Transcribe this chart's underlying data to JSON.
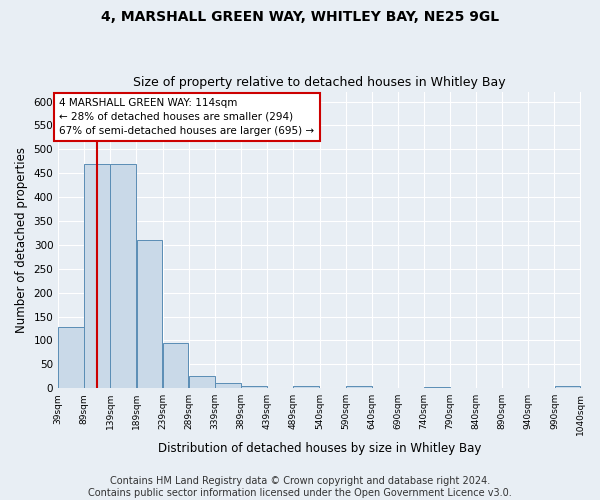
{
  "title1": "4, MARSHALL GREEN WAY, WHITLEY BAY, NE25 9GL",
  "title2": "Size of property relative to detached houses in Whitley Bay",
  "xlabel": "Distribution of detached houses by size in Whitley Bay",
  "ylabel": "Number of detached properties",
  "footnote": "Contains HM Land Registry data © Crown copyright and database right 2024.\nContains public sector information licensed under the Open Government Licence v3.0.",
  "bin_edges": [
    39,
    89,
    139,
    189,
    239,
    289,
    339,
    389,
    439,
    489,
    540,
    590,
    640,
    690,
    740,
    790,
    840,
    890,
    940,
    990,
    1040
  ],
  "bar_heights": [
    128,
    470,
    470,
    311,
    95,
    25,
    10,
    4,
    0,
    5,
    0,
    5,
    0,
    0,
    3,
    0,
    0,
    0,
    0,
    4
  ],
  "bar_color": "#c9d9e8",
  "bar_edge_color": "#5a8db5",
  "property_size": 114,
  "red_line_color": "#cc0000",
  "annotation_text": "4 MARSHALL GREEN WAY: 114sqm\n← 28% of detached houses are smaller (294)\n67% of semi-detached houses are larger (695) →",
  "annotation_box_color": "#ffffff",
  "annotation_box_edge": "#cc0000",
  "ylim": [
    0,
    620
  ],
  "yticks": [
    0,
    50,
    100,
    150,
    200,
    250,
    300,
    350,
    400,
    450,
    500,
    550,
    600
  ],
  "tick_labels": [
    "39sqm",
    "89sqm",
    "139sqm",
    "189sqm",
    "239sqm",
    "289sqm",
    "339sqm",
    "389sqm",
    "439sqm",
    "489sqm",
    "540sqm",
    "590sqm",
    "640sqm",
    "690sqm",
    "740sqm",
    "790sqm",
    "840sqm",
    "890sqm",
    "940sqm",
    "990sqm",
    "1040sqm"
  ],
  "background_color": "#e8eef4",
  "plot_bg_color": "#e8eef4",
  "grid_color": "#ffffff",
  "title1_fontsize": 10,
  "title2_fontsize": 9,
  "xlabel_fontsize": 8.5,
  "ylabel_fontsize": 8.5,
  "footnote_fontsize": 7
}
